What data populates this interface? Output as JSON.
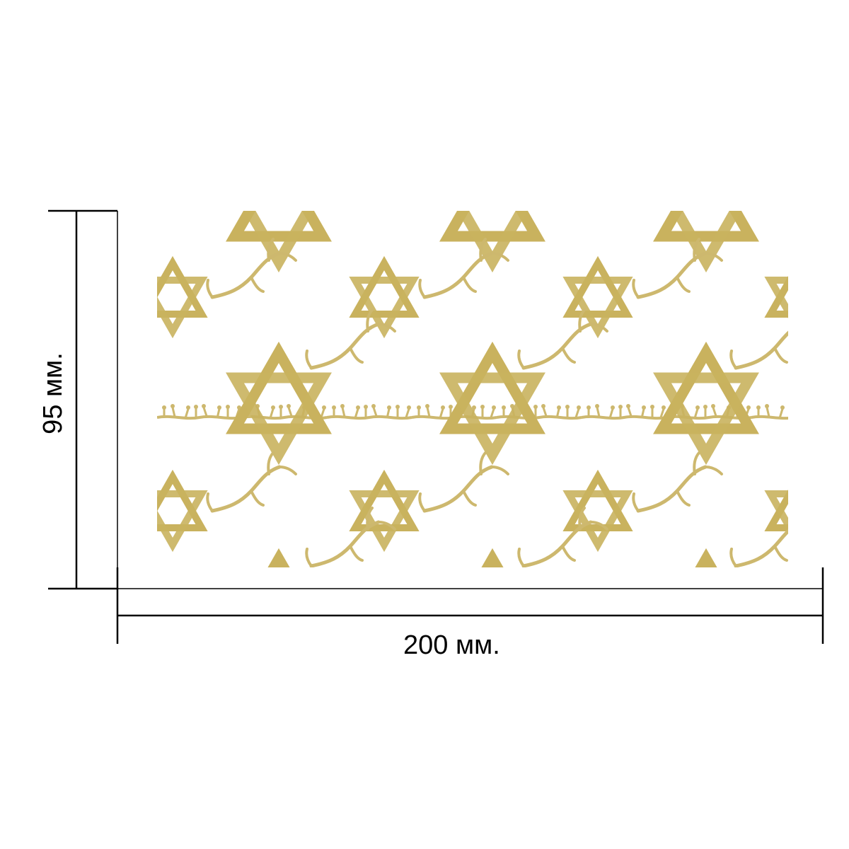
{
  "dimensions": {
    "width_label": "200 мм.",
    "height_label": "95 мм."
  },
  "pattern": {
    "motif": "star-of-david-with-branches",
    "color": "#c9b25e",
    "color_light": "#e6d9a6",
    "background": "#ffffff"
  },
  "lines": {
    "color": "#000000"
  }
}
